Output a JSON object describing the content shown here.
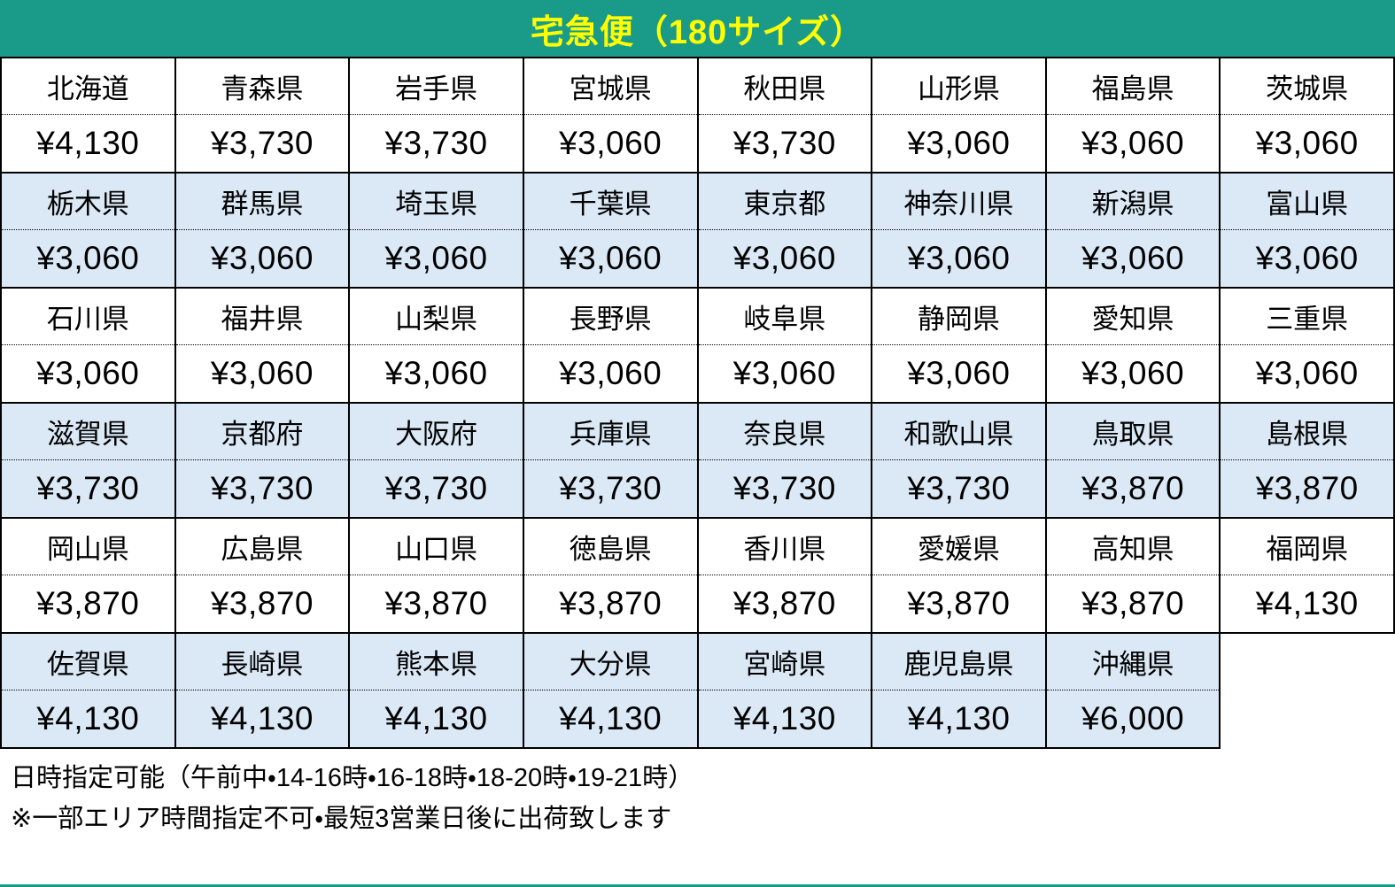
{
  "title": "宅急便（180サイズ）",
  "colors": {
    "header_bg": "#1a9b8a",
    "header_text": "#ffff00",
    "shaded_row_bg": "#dbe9f6",
    "border": "#000000"
  },
  "table": {
    "groups": [
      {
        "shaded": false,
        "cells": [
          {
            "name": "北海道",
            "price": "¥4,130"
          },
          {
            "name": "青森県",
            "price": "¥3,730"
          },
          {
            "name": "岩手県",
            "price": "¥3,730"
          },
          {
            "name": "宮城県",
            "price": "¥3,060"
          },
          {
            "name": "秋田県",
            "price": "¥3,730"
          },
          {
            "name": "山形県",
            "price": "¥3,060"
          },
          {
            "name": "福島県",
            "price": "¥3,060"
          },
          {
            "name": "茨城県",
            "price": "¥3,060"
          }
        ]
      },
      {
        "shaded": true,
        "cells": [
          {
            "name": "栃木県",
            "price": "¥3,060"
          },
          {
            "name": "群馬県",
            "price": "¥3,060"
          },
          {
            "name": "埼玉県",
            "price": "¥3,060"
          },
          {
            "name": "千葉県",
            "price": "¥3,060"
          },
          {
            "name": "東京都",
            "price": "¥3,060"
          },
          {
            "name": "神奈川県",
            "price": "¥3,060"
          },
          {
            "name": "新潟県",
            "price": "¥3,060"
          },
          {
            "name": "富山県",
            "price": "¥3,060"
          }
        ]
      },
      {
        "shaded": false,
        "cells": [
          {
            "name": "石川県",
            "price": "¥3,060"
          },
          {
            "name": "福井県",
            "price": "¥3,060"
          },
          {
            "name": "山梨県",
            "price": "¥3,060"
          },
          {
            "name": "長野県",
            "price": "¥3,060"
          },
          {
            "name": "岐阜県",
            "price": "¥3,060"
          },
          {
            "name": "静岡県",
            "price": "¥3,060"
          },
          {
            "name": "愛知県",
            "price": "¥3,060"
          },
          {
            "name": "三重県",
            "price": "¥3,060"
          }
        ]
      },
      {
        "shaded": true,
        "cells": [
          {
            "name": "滋賀県",
            "price": "¥3,730"
          },
          {
            "name": "京都府",
            "price": "¥3,730"
          },
          {
            "name": "大阪府",
            "price": "¥3,730"
          },
          {
            "name": "兵庫県",
            "price": "¥3,730"
          },
          {
            "name": "奈良県",
            "price": "¥3,730"
          },
          {
            "name": "和歌山県",
            "price": "¥3,730"
          },
          {
            "name": "鳥取県",
            "price": "¥3,870"
          },
          {
            "name": "島根県",
            "price": "¥3,870"
          }
        ]
      },
      {
        "shaded": false,
        "cells": [
          {
            "name": "岡山県",
            "price": "¥3,870"
          },
          {
            "name": "広島県",
            "price": "¥3,870"
          },
          {
            "name": "山口県",
            "price": "¥3,870"
          },
          {
            "name": "徳島県",
            "price": "¥3,870"
          },
          {
            "name": "香川県",
            "price": "¥3,870"
          },
          {
            "name": "愛媛県",
            "price": "¥3,870"
          },
          {
            "name": "高知県",
            "price": "¥3,870"
          },
          {
            "name": "福岡県",
            "price": "¥4,130"
          }
        ]
      },
      {
        "shaded": true,
        "cells": [
          {
            "name": "佐賀県",
            "price": "¥4,130"
          },
          {
            "name": "長崎県",
            "price": "¥4,130"
          },
          {
            "name": "熊本県",
            "price": "¥4,130"
          },
          {
            "name": "大分県",
            "price": "¥4,130"
          },
          {
            "name": "宮崎県",
            "price": "¥4,130"
          },
          {
            "name": "鹿児島県",
            "price": "¥4,130"
          },
          {
            "name": "沖縄県",
            "price": "¥6,000"
          }
        ]
      }
    ]
  },
  "footer": {
    "line1": "日時指定可能（午前中・14-16時・16-18時・18-20時・19-21時）",
    "line2": "※一部エリア時間指定不可・最短3営業日後に出荷致します"
  }
}
